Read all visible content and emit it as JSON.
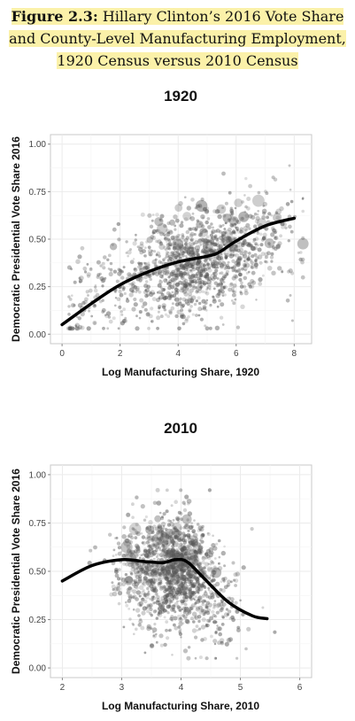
{
  "caption": {
    "figure_label": "Figure 2.3:",
    "text": "Hillary Clinton’s 2016 Vote Share and County-Level Manufacturing Employment, 1920 Census versus 2010 Census"
  },
  "chart_data": [
    {
      "type": "scatter",
      "title": "1920",
      "xlabel": "Log Manufacturing Share, 1920",
      "ylabel": "Democratic Presidential Vote Share 2016",
      "xlim": [
        -0.4,
        8.6
      ],
      "ylim": [
        -0.05,
        1.05
      ],
      "x_ticks": [
        0,
        2,
        4,
        6,
        8
      ],
      "x_tick_labels": [
        "0",
        "2",
        "4",
        "6",
        "8"
      ],
      "y_ticks": [
        0,
        0.25,
        0.5,
        0.75,
        1
      ],
      "y_tick_labels": [
        "0.00",
        "0.25",
        "0.50",
        "0.75",
        "1.00"
      ],
      "grid": true,
      "point_cloud": {
        "x_center": 5.0,
        "x_spread": 1.4,
        "x_min": 0.2,
        "x_max": 8.3,
        "y_center": 0.3,
        "y_spread": 0.13,
        "y_min": 0.03,
        "y_max": 0.92,
        "n": 1400,
        "point_color": "#555555",
        "note_trend": "larger, lighter points concentrate at high x with higher vote share"
      },
      "smooth_line": {
        "x": [
          0,
          1,
          2,
          3,
          4,
          5,
          5.4,
          6,
          7,
          8
        ],
        "y": [
          0.05,
          0.16,
          0.26,
          0.33,
          0.38,
          0.41,
          0.43,
          0.49,
          0.57,
          0.61
        ]
      }
    },
    {
      "type": "scatter",
      "title": "2010",
      "xlabel": "Log Manufacturing Share, 2010",
      "ylabel": "Democratic Presidential Vote Share 2016",
      "xlim": [
        1.8,
        6.2
      ],
      "ylim": [
        -0.05,
        1.05
      ],
      "x_ticks": [
        2,
        3,
        4,
        5,
        6
      ],
      "x_tick_labels": [
        "2",
        "3",
        "4",
        "5",
        "6"
      ],
      "y_ticks": [
        0,
        0.25,
        0.5,
        0.75,
        1
      ],
      "y_tick_labels": [
        "0.00",
        "0.25",
        "0.50",
        "0.75",
        "1.00"
      ],
      "grid": true,
      "point_cloud": {
        "x_center": 3.9,
        "x_spread": 0.45,
        "x_min": 2.0,
        "x_max": 5.6,
        "y_center": 0.35,
        "y_spread": 0.15,
        "y_min": 0.05,
        "y_max": 0.92,
        "n": 1400,
        "point_color": "#555555",
        "note_trend": "larger, lighter points concentrate near x=3 to 4 with higher vote share"
      },
      "smooth_line": {
        "x": [
          2.0,
          2.5,
          3.0,
          3.4,
          3.7,
          3.9,
          4.1,
          4.4,
          4.8,
          5.2,
          5.45
        ],
        "y": [
          0.45,
          0.53,
          0.56,
          0.55,
          0.545,
          0.56,
          0.55,
          0.46,
          0.34,
          0.27,
          0.255
        ]
      }
    }
  ]
}
